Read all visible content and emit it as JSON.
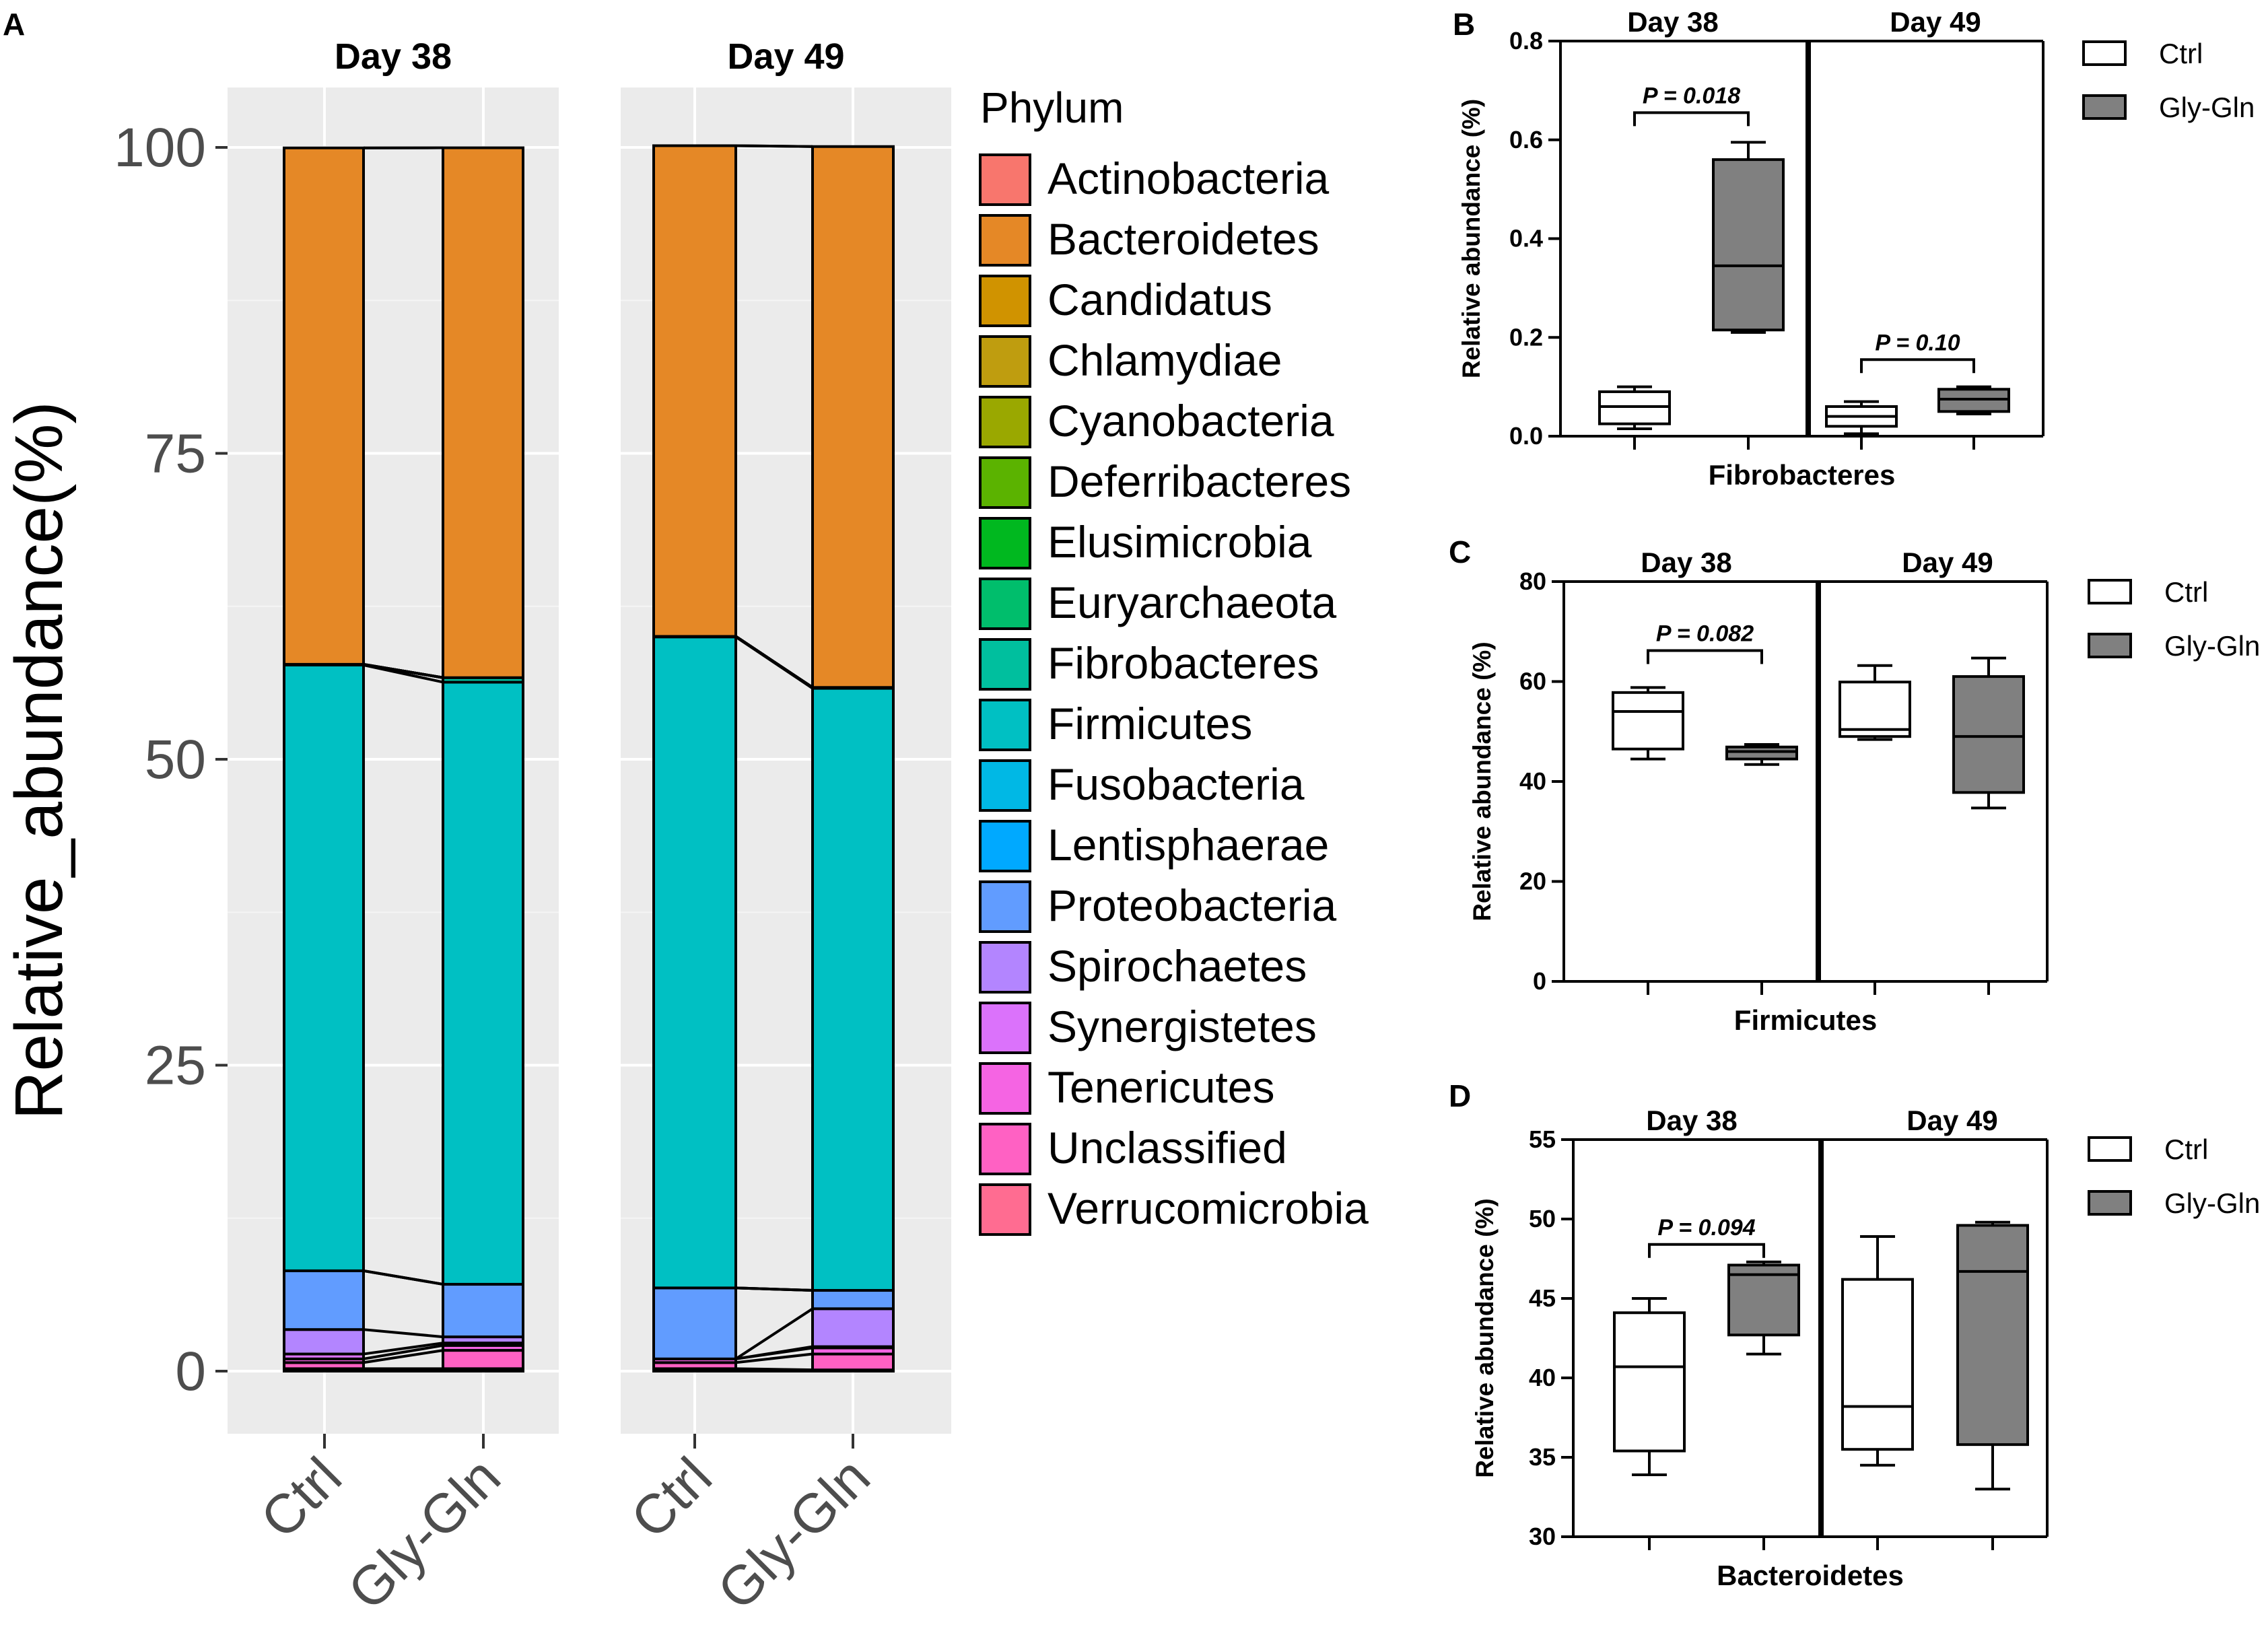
{
  "panel_labels": {
    "a": "A",
    "b": "B",
    "c": "C",
    "d": "D"
  },
  "chart_data": [
    {
      "id": "A",
      "type": "stacked-bar",
      "title": "",
      "ylabel": "Relative_abundance(%)",
      "ylim": [
        0,
        100
      ],
      "yticks": [
        "0",
        "25",
        "50",
        "75",
        "100"
      ],
      "legend_title": "Phylum",
      "legend_placement": "right",
      "facets": [
        {
          "title": "Day 38",
          "categories": [
            "Ctrl",
            "Gly-Gln"
          ]
        },
        {
          "title": "Day 49",
          "categories": [
            "Ctrl",
            "Gly-Gln"
          ]
        }
      ],
      "series": [
        {
          "name": "Actinobacteria",
          "color": "#F8766D",
          "values": [
            0.0,
            0.0,
            0.0,
            0.0
          ]
        },
        {
          "name": "Bacteroidetes",
          "color": "#E58826",
          "values": [
            42.2,
            43.3,
            40.1,
            44.2
          ]
        },
        {
          "name": "Candidatus",
          "color": "#D09300",
          "values": [
            0.0,
            0.0,
            0.0,
            0.0
          ]
        },
        {
          "name": "Chlamydiae",
          "color": "#BF9D0F",
          "values": [
            0.0,
            0.0,
            0.0,
            0.0
          ]
        },
        {
          "name": "Cyanobacteria",
          "color": "#9AA800",
          "values": [
            0.0,
            0.0,
            0.0,
            0.0
          ]
        },
        {
          "name": "Deferribacteres",
          "color": "#5BB300",
          "values": [
            0.0,
            0.0,
            0.0,
            0.0
          ]
        },
        {
          "name": "Elusimicrobia",
          "color": "#00B81F",
          "values": [
            0.0,
            0.0,
            0.0,
            0.0
          ]
        },
        {
          "name": "Euryarchaeota",
          "color": "#00BE6C",
          "values": [
            0.0,
            0.0,
            0.0,
            0.0
          ]
        },
        {
          "name": "Fibrobacteres",
          "color": "#00BF9E",
          "values": [
            0.06,
            0.37,
            0.04,
            0.07
          ]
        },
        {
          "name": "Firmicutes",
          "color": "#00C0C3",
          "values": [
            49.5,
            49.2,
            53.2,
            49.2
          ]
        },
        {
          "name": "Fusobacteria",
          "color": "#00B8E5",
          "values": [
            0.0,
            0.0,
            0.0,
            0.0
          ]
        },
        {
          "name": "Lentisphaerae",
          "color": "#00A9FF",
          "values": [
            0.0,
            0.0,
            0.0,
            0.0
          ]
        },
        {
          "name": "Proteobacteria",
          "color": "#619CFF",
          "values": [
            4.8,
            4.3,
            5.8,
            1.5
          ]
        },
        {
          "name": "Spirochaetes",
          "color": "#B385FF",
          "values": [
            2.0,
            0.5,
            0.0,
            3.1
          ]
        },
        {
          "name": "Synergistetes",
          "color": "#DB72FB",
          "values": [
            0.4,
            0.2,
            0.0,
            0.1
          ]
        },
        {
          "name": "Tenericutes",
          "color": "#F564E3",
          "values": [
            0.3,
            0.4,
            0.3,
            0.5
          ]
        },
        {
          "name": "Unclassified",
          "color": "#FF61C3",
          "values": [
            0.5,
            1.5,
            0.5,
            1.3
          ]
        },
        {
          "name": "Verrucomicrobia",
          "color": "#FF6C91",
          "values": [
            0.2,
            0.2,
            0.2,
            0.1
          ]
        }
      ]
    },
    {
      "id": "B",
      "type": "box",
      "xlabel": "Fibrobacteres",
      "ylabel": "Relative abundance (%)",
      "ylim": [
        0,
        0.8
      ],
      "yticks": [
        "0.0",
        "0.2",
        "0.4",
        "0.6",
        "0.8"
      ],
      "groups": [
        "Day 38",
        "Day 49"
      ],
      "legend": [
        "Ctrl",
        "Gly-Gln"
      ],
      "boxes": [
        {
          "group": "Day 38",
          "series": "Ctrl",
          "min": 0.015,
          "q1": 0.025,
          "median": 0.06,
          "q3": 0.09,
          "max": 0.1
        },
        {
          "group": "Day 38",
          "series": "Gly-Gln",
          "min": 0.21,
          "q1": 0.215,
          "median": 0.345,
          "q3": 0.56,
          "max": 0.595
        },
        {
          "group": "Day 49",
          "series": "Ctrl",
          "min": 0.005,
          "q1": 0.02,
          "median": 0.04,
          "q3": 0.06,
          "max": 0.07
        },
        {
          "group": "Day 49",
          "series": "Gly-Gln",
          "min": 0.045,
          "q1": 0.05,
          "median": 0.075,
          "q3": 0.095,
          "max": 0.1
        }
      ],
      "annotations": [
        {
          "group": "Day 38",
          "text": "P = 0.018",
          "y": 0.655
        },
        {
          "group": "Day 49",
          "text": "P = 0.10",
          "y": 0.155
        }
      ]
    },
    {
      "id": "C",
      "type": "box",
      "xlabel": "Firmicutes",
      "ylabel": "Relative abundance (%)",
      "ylim": [
        0,
        80
      ],
      "yticks": [
        "0",
        "20",
        "40",
        "60",
        "80"
      ],
      "groups": [
        "Day 38",
        "Day 49"
      ],
      "legend": [
        "Ctrl",
        "Gly-Gln"
      ],
      "boxes": [
        {
          "group": "Day 38",
          "series": "Ctrl",
          "min": 44.5,
          "q1": 46.5,
          "median": 54.0,
          "q3": 57.8,
          "max": 58.8
        },
        {
          "group": "Day 38",
          "series": "Gly-Gln",
          "min": 43.4,
          "q1": 44.5,
          "median": 46.0,
          "q3": 46.9,
          "max": 47.4
        },
        {
          "group": "Day 49",
          "series": "Ctrl",
          "min": 48.4,
          "q1": 49.0,
          "median": 50.4,
          "q3": 59.9,
          "max": 63.2
        },
        {
          "group": "Day 49",
          "series": "Gly-Gln",
          "min": 34.7,
          "q1": 37.8,
          "median": 49.0,
          "q3": 61.0,
          "max": 64.7
        }
      ],
      "annotations": [
        {
          "group": "Day 38",
          "text": "P = 0.082",
          "y": 66.2
        }
      ]
    },
    {
      "id": "D",
      "type": "box",
      "xlabel": "Bacteroidetes",
      "ylabel": "Relative abundance (%)",
      "ylim": [
        30,
        55
      ],
      "yticks": [
        "30",
        "35",
        "40",
        "45",
        "50",
        "55"
      ],
      "groups": [
        "Day 38",
        "Day 49"
      ],
      "legend": [
        "Ctrl",
        "Gly-Gln"
      ],
      "boxes": [
        {
          "group": "Day 38",
          "series": "Ctrl",
          "min": 33.9,
          "q1": 35.4,
          "median": 40.7,
          "q3": 44.1,
          "max": 45.0
        },
        {
          "group": "Day 38",
          "series": "Gly-Gln",
          "min": 41.5,
          "q1": 42.7,
          "median": 46.5,
          "q3": 47.1,
          "max": 47.3
        },
        {
          "group": "Day 49",
          "series": "Ctrl",
          "min": 34.5,
          "q1": 35.5,
          "median": 38.2,
          "q3": 46.2,
          "max": 48.9
        },
        {
          "group": "Day 49",
          "series": "Gly-Gln",
          "min": 33.0,
          "q1": 35.8,
          "median": 46.7,
          "q3": 49.6,
          "max": 49.8
        }
      ],
      "annotations": [
        {
          "group": "Day 38",
          "text": "P = 0.094",
          "y": 48.4
        }
      ]
    }
  ]
}
